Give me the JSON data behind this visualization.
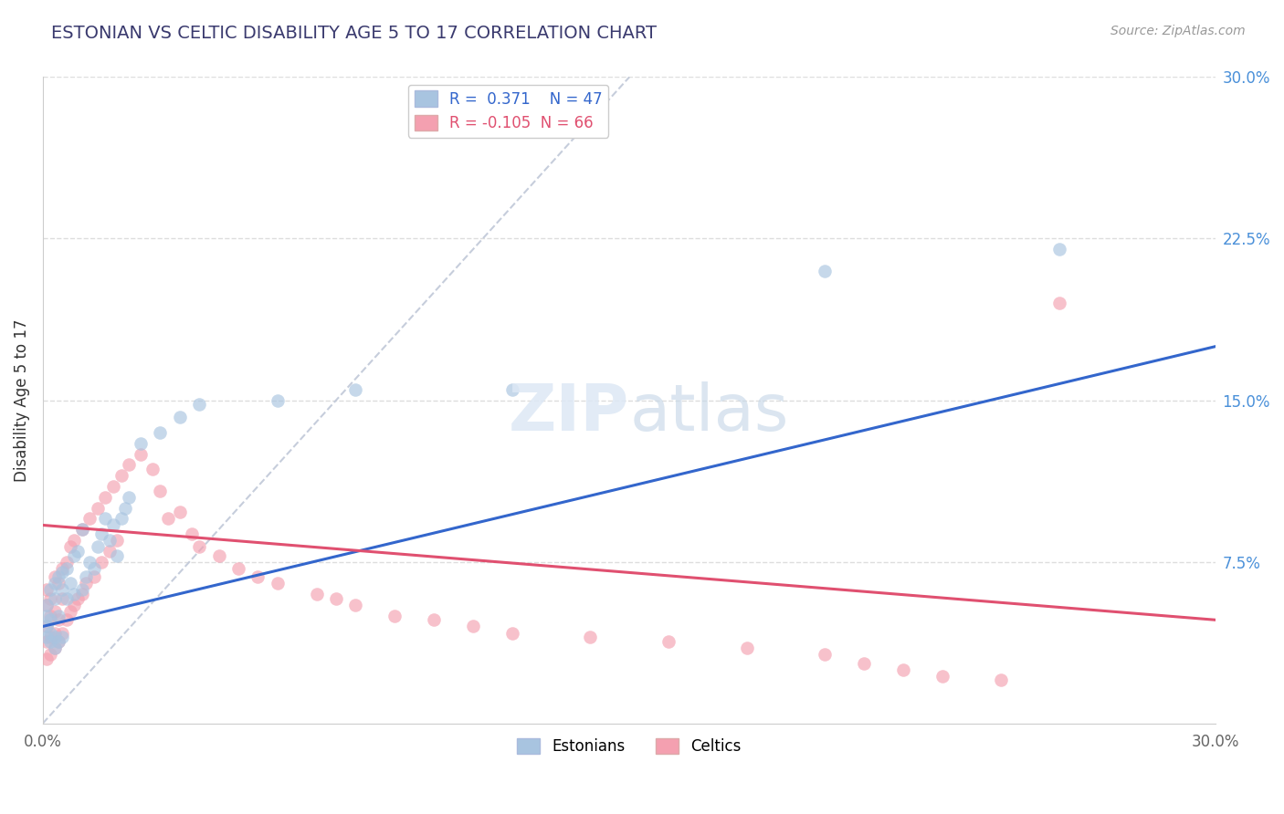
{
  "title": "ESTONIAN VS CELTIC DISABILITY AGE 5 TO 17 CORRELATION CHART",
  "source": "Source: ZipAtlas.com",
  "ylabel": "Disability Age 5 to 17",
  "x_min": 0.0,
  "x_max": 0.3,
  "y_min": 0.0,
  "y_max": 0.3,
  "estonian_R": 0.371,
  "estonian_N": 47,
  "celtic_R": -0.105,
  "celtic_N": 66,
  "estonian_color": "#a8c4e0",
  "celtic_color": "#f4a0b0",
  "estonian_line_color": "#3366cc",
  "celtic_line_color": "#e05070",
  "ref_line_color": "#c0c8d8",
  "title_color": "#3a3a6e",
  "source_color": "#999999",
  "legend_label_estonian": "Estonians",
  "legend_label_celtic": "Celtics",
  "background_color": "#ffffff",
  "grid_color": "#dddddd",
  "y_ticks_right": [
    0.075,
    0.15,
    0.225,
    0.3
  ],
  "y_tick_labels_right": [
    "7.5%",
    "15.0%",
    "22.5%",
    "30.0%"
  ],
  "estonian_line_x0": 0.0,
  "estonian_line_y0": 0.045,
  "estonian_line_x1": 0.3,
  "estonian_line_y1": 0.175,
  "celtic_line_x0": 0.0,
  "celtic_line_y0": 0.092,
  "celtic_line_x1": 0.3,
  "celtic_line_y1": 0.048,
  "estonian_points_x": [
    0.001,
    0.001,
    0.001,
    0.001,
    0.002,
    0.002,
    0.002,
    0.002,
    0.003,
    0.003,
    0.003,
    0.003,
    0.004,
    0.004,
    0.004,
    0.005,
    0.005,
    0.005,
    0.006,
    0.006,
    0.007,
    0.008,
    0.008,
    0.009,
    0.01,
    0.01,
    0.011,
    0.012,
    0.013,
    0.014,
    0.015,
    0.016,
    0.017,
    0.018,
    0.019,
    0.02,
    0.021,
    0.022,
    0.025,
    0.03,
    0.035,
    0.04,
    0.06,
    0.08,
    0.12,
    0.2,
    0.26
  ],
  "estonian_points_y": [
    0.04,
    0.045,
    0.05,
    0.055,
    0.038,
    0.042,
    0.048,
    0.062,
    0.035,
    0.04,
    0.058,
    0.065,
    0.038,
    0.05,
    0.068,
    0.04,
    0.062,
    0.07,
    0.058,
    0.072,
    0.065,
    0.06,
    0.078,
    0.08,
    0.062,
    0.09,
    0.068,
    0.075,
    0.072,
    0.082,
    0.088,
    0.095,
    0.085,
    0.092,
    0.078,
    0.095,
    0.1,
    0.105,
    0.13,
    0.135,
    0.142,
    0.148,
    0.15,
    0.155,
    0.155,
    0.21,
    0.22
  ],
  "celtic_points_x": [
    0.001,
    0.001,
    0.001,
    0.001,
    0.001,
    0.002,
    0.002,
    0.002,
    0.002,
    0.003,
    0.003,
    0.003,
    0.003,
    0.004,
    0.004,
    0.004,
    0.005,
    0.005,
    0.005,
    0.006,
    0.006,
    0.007,
    0.007,
    0.008,
    0.008,
    0.009,
    0.01,
    0.01,
    0.011,
    0.012,
    0.013,
    0.014,
    0.015,
    0.016,
    0.017,
    0.018,
    0.019,
    0.02,
    0.022,
    0.025,
    0.028,
    0.03,
    0.032,
    0.035,
    0.038,
    0.04,
    0.045,
    0.05,
    0.055,
    0.06,
    0.07,
    0.075,
    0.08,
    0.09,
    0.1,
    0.11,
    0.12,
    0.14,
    0.16,
    0.18,
    0.2,
    0.21,
    0.22,
    0.23,
    0.245,
    0.26
  ],
  "celtic_points_y": [
    0.03,
    0.038,
    0.045,
    0.055,
    0.062,
    0.032,
    0.04,
    0.05,
    0.058,
    0.035,
    0.042,
    0.052,
    0.068,
    0.038,
    0.048,
    0.065,
    0.042,
    0.058,
    0.072,
    0.048,
    0.075,
    0.052,
    0.082,
    0.055,
    0.085,
    0.058,
    0.06,
    0.09,
    0.065,
    0.095,
    0.068,
    0.1,
    0.075,
    0.105,
    0.08,
    0.11,
    0.085,
    0.115,
    0.12,
    0.125,
    0.118,
    0.108,
    0.095,
    0.098,
    0.088,
    0.082,
    0.078,
    0.072,
    0.068,
    0.065,
    0.06,
    0.058,
    0.055,
    0.05,
    0.048,
    0.045,
    0.042,
    0.04,
    0.038,
    0.035,
    0.032,
    0.028,
    0.025,
    0.022,
    0.02,
    0.195
  ]
}
